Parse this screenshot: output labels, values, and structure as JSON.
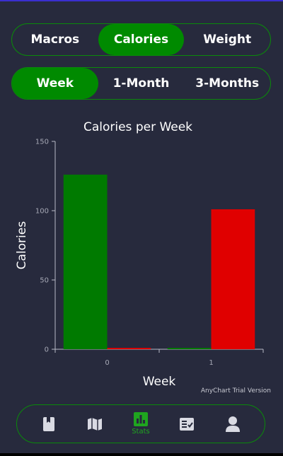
{
  "tabs_type": {
    "items": [
      {
        "label": "Macros",
        "active": false
      },
      {
        "label": "Calories",
        "active": true
      },
      {
        "label": "Weight",
        "active": false
      }
    ]
  },
  "tabs_range": {
    "items": [
      {
        "label": "Week",
        "active": true
      },
      {
        "label": "1-Month",
        "active": false
      },
      {
        "label": "3-Months",
        "active": false
      }
    ]
  },
  "chart_data": {
    "type": "bar",
    "title": "Calories per Week",
    "xlabel": "Week",
    "ylabel": "Calories",
    "categories": [
      "0",
      "1"
    ],
    "ylim": [
      0,
      150
    ],
    "yticks": [
      0,
      50,
      100,
      150
    ],
    "series": [
      {
        "color": "#007a00",
        "values": [
          126,
          1
        ]
      },
      {
        "color": "#e00000",
        "values": [
          1,
          101
        ]
      }
    ],
    "grid": false,
    "legend": "none"
  },
  "watermark": "AnyChart Trial Version",
  "nav": {
    "items": [
      {
        "icon": "book-icon",
        "label": "",
        "active": false
      },
      {
        "icon": "map-icon",
        "label": "",
        "active": false
      },
      {
        "icon": "bar-chart-icon",
        "label": "Stats",
        "active": true
      },
      {
        "icon": "checklist-icon",
        "label": "",
        "active": false
      },
      {
        "icon": "person-icon",
        "label": "",
        "active": false
      }
    ],
    "active_color": "#1fa51f",
    "inactive_color": "#d9dae3"
  }
}
